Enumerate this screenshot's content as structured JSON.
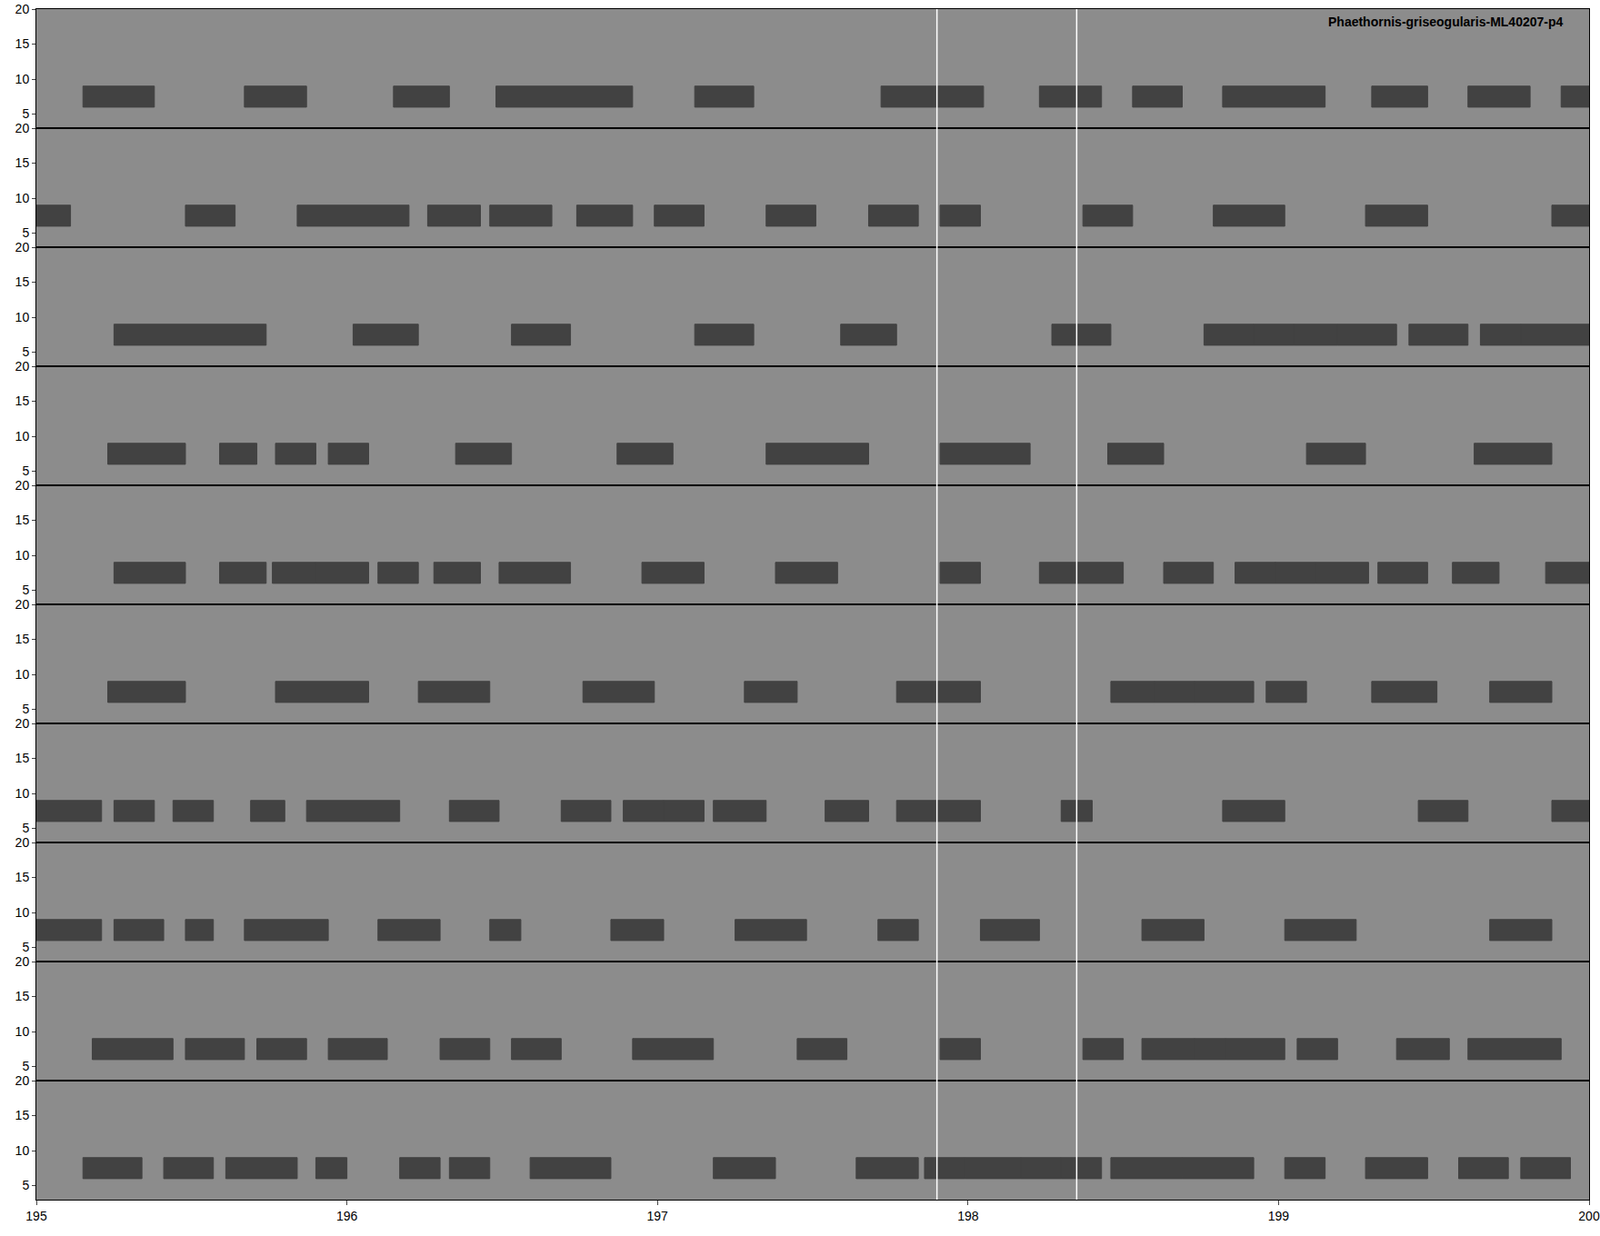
{
  "chart_data": {
    "type": "spectrogram",
    "title": "Phaethornis-griseogularis-ML40207-p4",
    "ylim": [
      3,
      20
    ],
    "yticks": [
      5,
      10,
      15,
      20
    ],
    "call_freq_range": [
      6,
      9
    ],
    "cursor_lines": [
      197.9,
      198.35
    ],
    "color": "#2a2a2a",
    "panels": [
      {
        "xlim": [
          150,
          155
        ],
        "tick_labels": "y",
        "calls": [
          [
            150.15,
            150.38
          ],
          [
            150.67,
            150.87
          ],
          [
            151.15,
            151.33
          ],
          [
            151.48,
            151.92
          ],
          [
            152.12,
            152.31
          ],
          [
            152.72,
            152.91
          ],
          [
            152.91,
            153.05
          ],
          [
            153.23,
            153.43
          ],
          [
            153.53,
            153.69
          ],
          [
            153.82,
            154.15
          ],
          [
            154.3,
            154.48
          ],
          [
            154.61,
            154.81
          ],
          [
            154.91,
            155.0
          ]
        ]
      },
      {
        "xlim": [
          155,
          160
        ],
        "tick_labels": "y",
        "calls": [
          [
            155.0,
            155.11
          ],
          [
            155.48,
            155.64
          ],
          [
            155.84,
            156.2
          ],
          [
            156.26,
            156.43
          ],
          [
            156.46,
            156.66
          ],
          [
            156.74,
            156.92
          ],
          [
            156.99,
            157.15
          ],
          [
            157.35,
            157.51
          ],
          [
            157.68,
            157.84
          ],
          [
            157.91,
            158.04
          ],
          [
            158.37,
            158.53
          ],
          [
            158.79,
            159.02
          ],
          [
            159.28,
            159.48
          ],
          [
            159.88,
            160.0
          ]
        ]
      },
      {
        "xlim": [
          160,
          165
        ],
        "tick_labels": "y",
        "calls": [
          [
            160.25,
            160.74
          ],
          [
            161.02,
            161.23
          ],
          [
            161.53,
            161.72
          ],
          [
            162.12,
            162.31
          ],
          [
            162.59,
            162.77
          ],
          [
            163.27,
            163.46
          ],
          [
            163.76,
            163.92
          ],
          [
            163.92,
            164.05
          ],
          [
            164.05,
            164.19
          ],
          [
            164.19,
            164.38
          ],
          [
            164.42,
            164.61
          ],
          [
            164.65,
            164.78
          ],
          [
            164.78,
            165.0
          ]
        ]
      },
      {
        "xlim": [
          165,
          170
        ],
        "tick_labels": "y",
        "calls": [
          [
            165.23,
            165.48
          ],
          [
            165.59,
            165.71
          ],
          [
            165.77,
            165.9
          ],
          [
            165.94,
            166.07
          ],
          [
            166.35,
            166.53
          ],
          [
            166.87,
            167.05
          ],
          [
            167.35,
            167.68
          ],
          [
            167.91,
            168.2
          ],
          [
            168.45,
            168.63
          ],
          [
            169.09,
            169.28
          ],
          [
            169.63,
            169.88
          ]
        ]
      },
      {
        "xlim": [
          170,
          175
        ],
        "tick_labels": "y",
        "calls": [
          [
            170.25,
            170.48
          ],
          [
            170.59,
            170.74
          ],
          [
            170.76,
            170.9
          ],
          [
            170.9,
            171.07
          ],
          [
            171.1,
            171.23
          ],
          [
            171.28,
            171.43
          ],
          [
            171.49,
            171.72
          ],
          [
            171.95,
            172.15
          ],
          [
            172.38,
            172.58
          ],
          [
            172.91,
            173.04
          ],
          [
            173.23,
            173.5
          ],
          [
            173.63,
            173.79
          ],
          [
            173.86,
            173.99
          ],
          [
            173.99,
            174.12
          ],
          [
            174.12,
            174.29
          ],
          [
            174.32,
            174.48
          ],
          [
            174.56,
            174.71
          ],
          [
            174.86,
            175.0
          ]
        ]
      },
      {
        "xlim": [
          175,
          180
        ],
        "tick_labels": "y",
        "calls": [
          [
            175.23,
            175.48
          ],
          [
            175.77,
            176.07
          ],
          [
            176.23,
            176.46
          ],
          [
            176.76,
            176.99
          ],
          [
            177.28,
            177.45
          ],
          [
            177.77,
            178.04
          ],
          [
            178.46,
            178.6
          ],
          [
            178.6,
            178.73
          ],
          [
            178.73,
            178.92
          ],
          [
            178.96,
            179.09
          ],
          [
            179.3,
            179.51
          ],
          [
            179.68,
            179.88
          ]
        ]
      },
      {
        "xlim": [
          180,
          185
        ],
        "tick_labels": "y",
        "calls": [
          [
            180.0,
            180.21
          ],
          [
            180.25,
            180.38
          ],
          [
            180.44,
            180.57
          ],
          [
            180.69,
            180.8
          ],
          [
            180.87,
            181.17
          ],
          [
            181.33,
            181.49
          ],
          [
            181.69,
            181.85
          ],
          [
            181.89,
            182.02
          ],
          [
            182.02,
            182.15
          ],
          [
            182.18,
            182.35
          ],
          [
            182.54,
            182.68
          ],
          [
            182.77,
            183.04
          ],
          [
            183.3,
            183.4
          ],
          [
            183.82,
            184.02
          ],
          [
            184.45,
            184.61
          ],
          [
            184.88,
            185.0
          ]
        ]
      },
      {
        "xlim": [
          185,
          190
        ],
        "tick_labels": "y",
        "calls": [
          [
            185.0,
            185.21
          ],
          [
            185.25,
            185.41
          ],
          [
            185.48,
            185.57
          ],
          [
            185.67,
            185.94
          ],
          [
            186.1,
            186.3
          ],
          [
            186.46,
            186.56
          ],
          [
            186.85,
            187.02
          ],
          [
            187.25,
            187.48
          ],
          [
            187.71,
            187.84
          ],
          [
            188.04,
            188.23
          ],
          [
            188.56,
            188.76
          ],
          [
            189.02,
            189.25
          ],
          [
            189.68,
            189.88
          ]
        ]
      },
      {
        "xlim": [
          190,
          195
        ],
        "tick_labels": "y",
        "calls": [
          [
            190.18,
            190.44
          ],
          [
            190.48,
            190.67
          ],
          [
            190.71,
            190.87
          ],
          [
            190.94,
            191.13
          ],
          [
            191.3,
            191.46
          ],
          [
            191.53,
            191.69
          ],
          [
            191.92,
            192.18
          ],
          [
            192.45,
            192.61
          ],
          [
            192.91,
            193.04
          ],
          [
            193.37,
            193.5
          ],
          [
            193.56,
            193.73
          ],
          [
            193.73,
            193.83
          ],
          [
            193.83,
            194.02
          ],
          [
            194.06,
            194.19
          ],
          [
            194.38,
            194.55
          ],
          [
            194.61,
            194.91
          ]
        ]
      },
      {
        "xlim": [
          195,
          200
        ],
        "xticks": [
          195,
          196,
          197,
          198,
          199,
          200
        ],
        "tick_labels": true,
        "calls": [
          [
            195.15,
            195.34
          ],
          [
            195.41,
            195.57
          ],
          [
            195.61,
            195.84
          ],
          [
            195.9,
            196.0
          ],
          [
            196.17,
            196.3
          ],
          [
            196.33,
            196.46
          ],
          [
            196.59,
            196.85
          ],
          [
            197.18,
            197.38
          ],
          [
            197.64,
            197.84
          ],
          [
            197.86,
            197.99
          ],
          [
            197.99,
            198.17
          ],
          [
            198.17,
            198.3
          ],
          [
            198.3,
            198.43
          ],
          [
            198.46,
            198.69
          ],
          [
            198.69,
            198.92
          ],
          [
            199.02,
            199.15
          ],
          [
            199.28,
            199.48
          ],
          [
            199.58,
            199.74
          ],
          [
            199.78,
            199.94
          ]
        ]
      }
    ]
  }
}
